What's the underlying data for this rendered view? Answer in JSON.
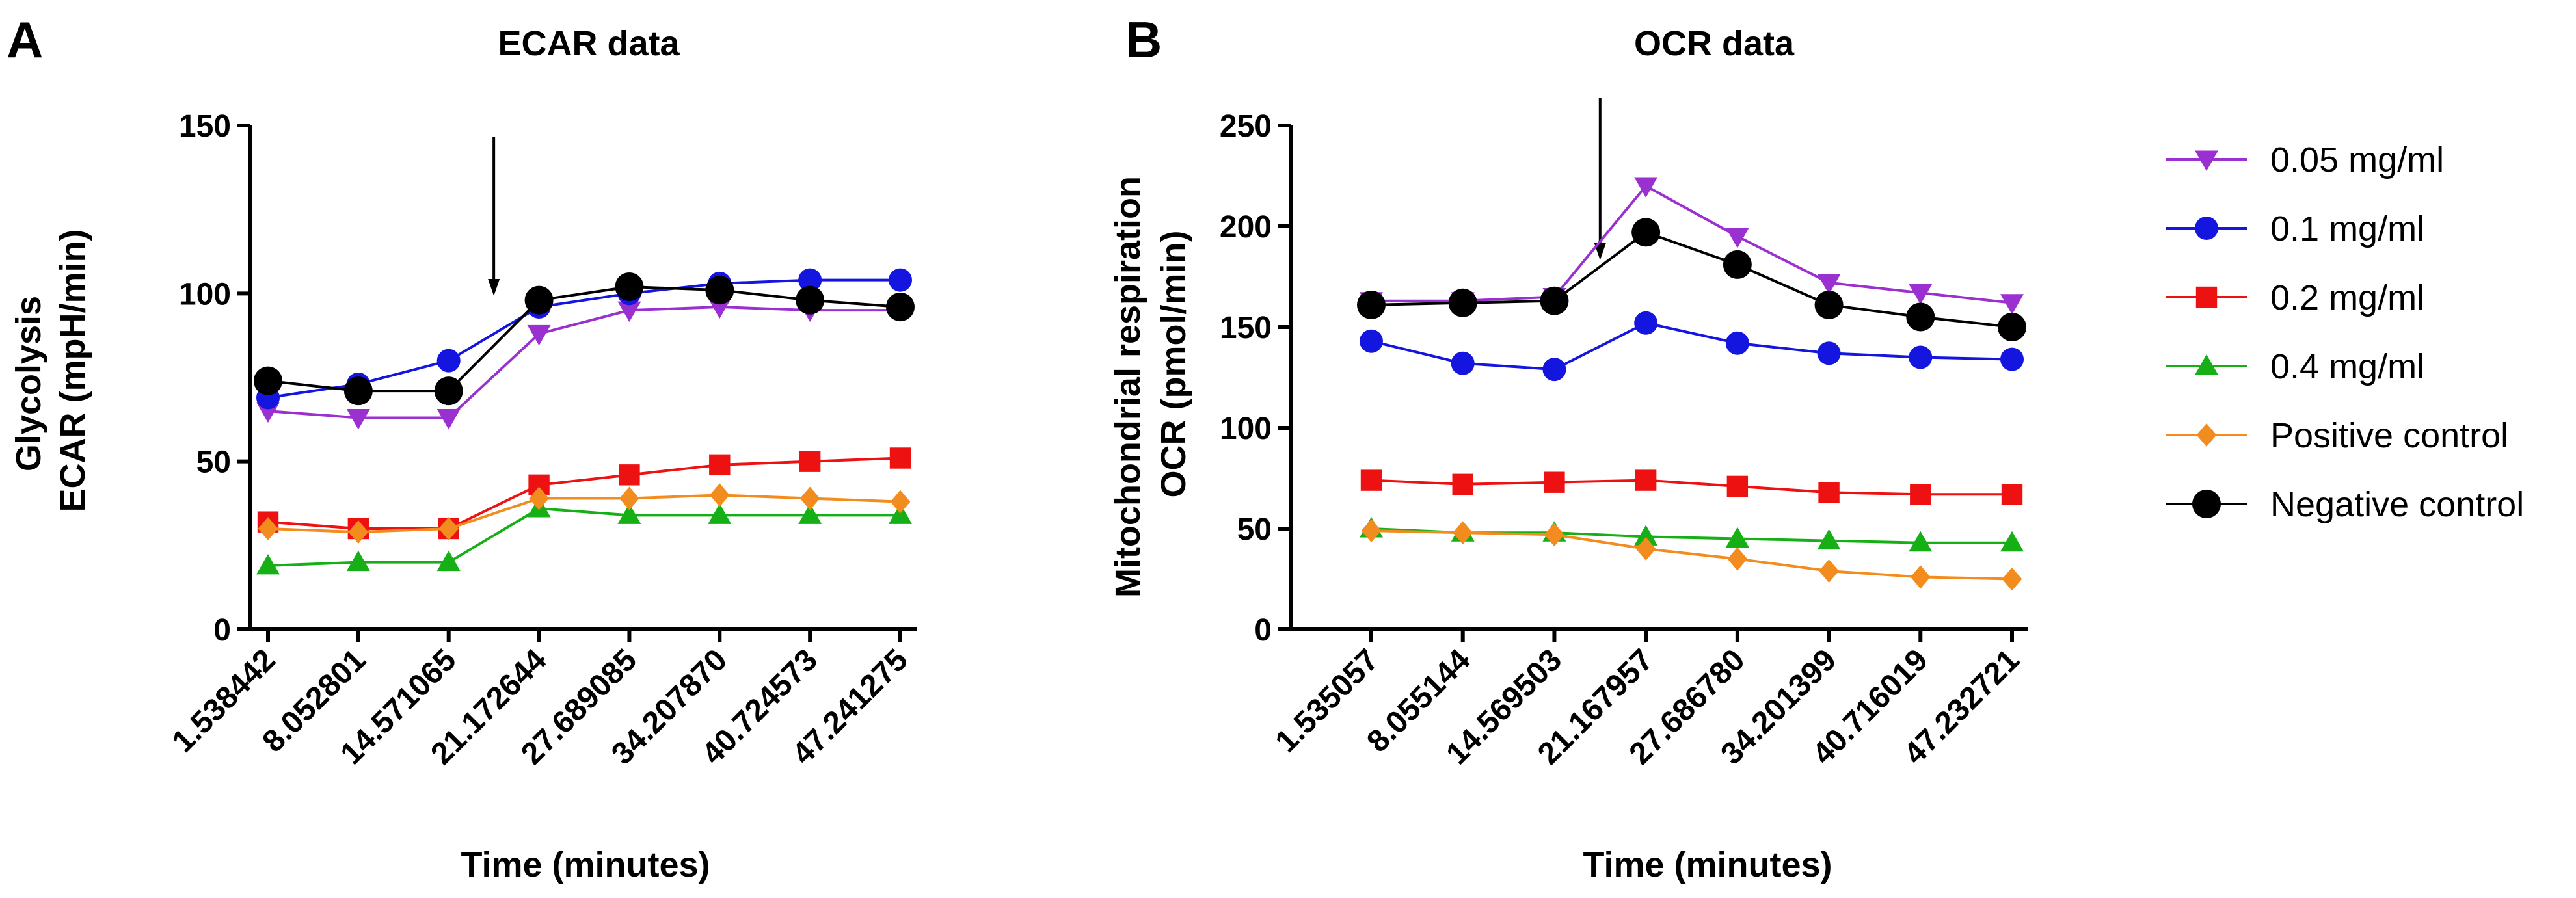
{
  "chart_data": [
    {
      "type": "line",
      "panel": "A",
      "title": "ECAR data",
      "ylabel_lines": [
        "Glycolysis",
        "ECAR (mpH/min)"
      ],
      "xlabel": "Time (minutes)",
      "categories": [
        "1.538442",
        "8.052801",
        "14.571065",
        "21.172644",
        "27.689085",
        "34.207870",
        "40.724573",
        "47.241275"
      ],
      "ylim": [
        0,
        150
      ],
      "yticks": [
        0,
        50,
        100,
        150
      ],
      "arrow_after_index": 2,
      "series": [
        {
          "name": "0.05 mg/ml",
          "values": [
            65,
            63,
            63,
            88,
            95,
            96,
            95,
            95
          ]
        },
        {
          "name": "0.1 mg/ml",
          "values": [
            69,
            73,
            80,
            96,
            100,
            103,
            104,
            104
          ]
        },
        {
          "name": "0.2 mg/ml",
          "values": [
            32,
            30,
            30,
            43,
            46,
            49,
            50,
            51
          ]
        },
        {
          "name": "0.4 mg/ml",
          "values": [
            19,
            20,
            20,
            36,
            34,
            34,
            34,
            34
          ]
        },
        {
          "name": "Positive control",
          "values": [
            30,
            29,
            30,
            39,
            39,
            40,
            39,
            38
          ]
        },
        {
          "name": "Negative control",
          "values": [
            74,
            71,
            71,
            98,
            102,
            101,
            98,
            96
          ]
        }
      ]
    },
    {
      "type": "line",
      "panel": "B",
      "title": "OCR data",
      "ylabel_lines": [
        "Mitochondrial respiration",
        "OCR (pmol/min)"
      ],
      "xlabel": "Time (minutes)",
      "categories": [
        "1.535057",
        "8.055144",
        "14.569503",
        "21.167957",
        "27.686780",
        "34.201399",
        "40.716019",
        "47.232721"
      ],
      "ylim": [
        0,
        250
      ],
      "yticks": [
        0,
        50,
        100,
        150,
        200,
        250
      ],
      "arrow_after_index": 2,
      "series": [
        {
          "name": "0.05 mg/ml",
          "values": [
            163,
            163,
            165,
            220,
            195,
            172,
            167,
            162
          ]
        },
        {
          "name": "0.1 mg/ml",
          "values": [
            143,
            132,
            129,
            152,
            142,
            137,
            135,
            134
          ]
        },
        {
          "name": "0.2 mg/ml",
          "values": [
            74,
            72,
            73,
            74,
            71,
            68,
            67,
            67
          ]
        },
        {
          "name": "0.4 mg/ml",
          "values": [
            50,
            48,
            48,
            46,
            45,
            44,
            43,
            43
          ]
        },
        {
          "name": "Positive control",
          "values": [
            49,
            48,
            47,
            40,
            35,
            29,
            26,
            25
          ]
        },
        {
          "name": "Negative control",
          "values": [
            161,
            162,
            163,
            197,
            181,
            161,
            155,
            150
          ]
        }
      ]
    }
  ],
  "legend": [
    {
      "label": "0.05 mg/ml",
      "color": "#9B30D0",
      "marker": "triangle-down"
    },
    {
      "label": "0.1 mg/ml",
      "color": "#1515E0",
      "marker": "circle"
    },
    {
      "label": "0.2 mg/ml",
      "color": "#EE1111",
      "marker": "square"
    },
    {
      "label": "0.4 mg/ml",
      "color": "#16B016",
      "marker": "triangle-up"
    },
    {
      "label": "Positive control",
      "color": "#F28C1E",
      "marker": "diamond"
    },
    {
      "label": "Negative control",
      "color": "#000000",
      "marker": "circle"
    }
  ]
}
